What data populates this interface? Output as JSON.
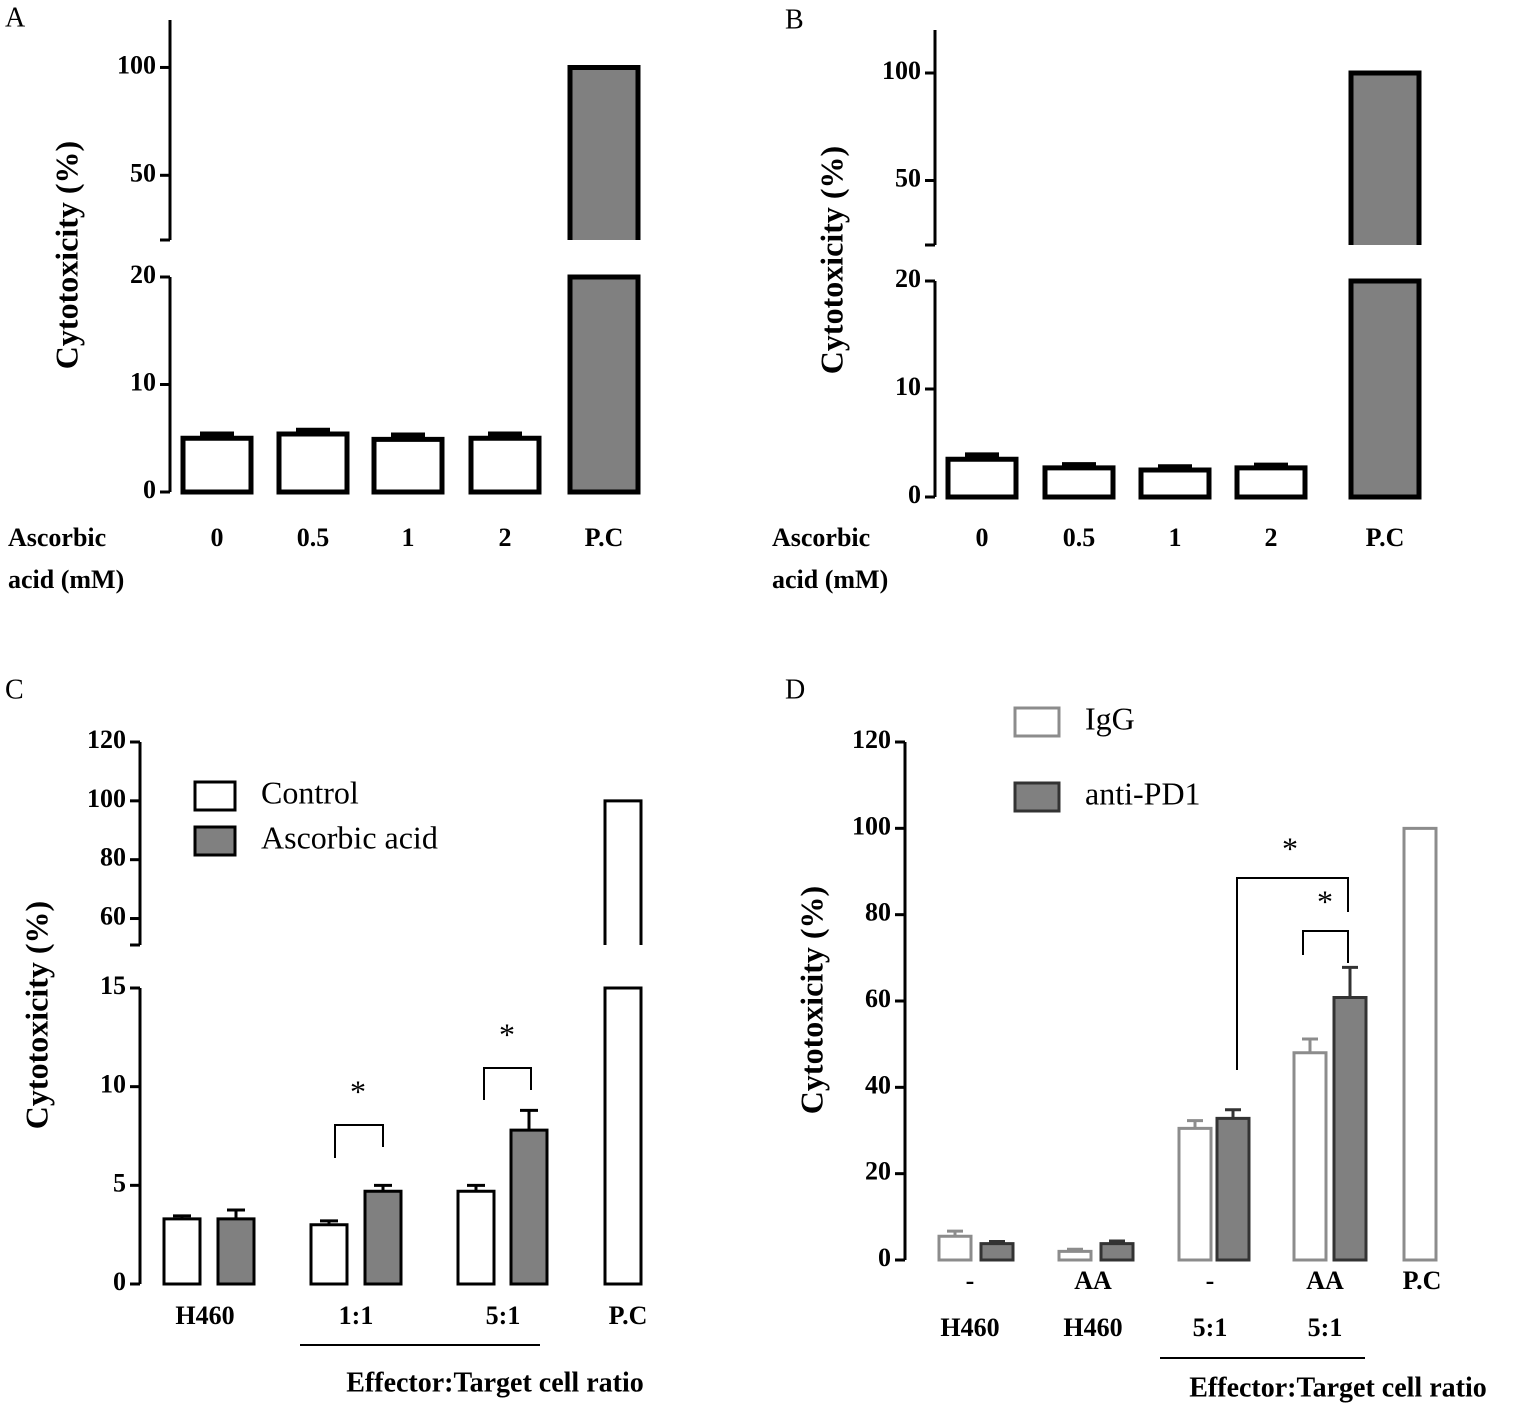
{
  "chart_data": [
    {
      "type": "bar",
      "panel": "A",
      "ylabel": "Cytotoxicity (%)",
      "xlabel": [
        "Ascorbic",
        "acid (mM)"
      ],
      "categories": [
        "0",
        "0.5",
        "1",
        "2",
        "P.C"
      ],
      "ysegments": [
        [
          0,
          20
        ],
        [
          20,
          122
        ]
      ],
      "yticks": [
        0,
        10,
        20,
        50,
        100
      ],
      "series": [
        {
          "colors": [
            "#ffffff",
            "#ffffff",
            "#ffffff",
            "#ffffff",
            "#808080"
          ],
          "edge": "#000000",
          "values": [
            5.0,
            5.4,
            4.9,
            5.0,
            100
          ],
          "errors": [
            0.4,
            0.35,
            0.4,
            0.4,
            null
          ]
        }
      ]
    },
    {
      "type": "bar",
      "panel": "B",
      "ylabel": "Cytotoxicity (%)",
      "xlabel": [
        "Ascorbic",
        "acid (mM)"
      ],
      "categories": [
        "0",
        "0.5",
        "1",
        "2",
        "P.C"
      ],
      "ysegments": [
        [
          0,
          20
        ],
        [
          20,
          120
        ]
      ],
      "yticks": [
        0,
        10,
        20,
        50,
        100
      ],
      "series": [
        {
          "colors": [
            "#ffffff",
            "#ffffff",
            "#ffffff",
            "#ffffff",
            "#808080"
          ],
          "edge": "#000000",
          "values": [
            3.5,
            2.7,
            2.5,
            2.7,
            100
          ],
          "errors": [
            0.4,
            0.3,
            0.3,
            0.25,
            null
          ]
        }
      ]
    },
    {
      "type": "bar",
      "panel": "C",
      "ylabel": "Cytotoxicity (%)",
      "categories": [
        "H460",
        "1:1",
        "5:1",
        "P.C"
      ],
      "group_label": "Effector:Target cell ratio",
      "ysegments": [
        [
          0,
          15
        ],
        [
          51,
          120
        ]
      ],
      "yticks": [
        0,
        5,
        10,
        15,
        60,
        80,
        100,
        120
      ],
      "series": [
        {
          "name": "Control",
          "color": "#ffffff",
          "edge": "#000000",
          "values": [
            3.3,
            3.0,
            4.7,
            100
          ],
          "errors": [
            0.15,
            0.2,
            0.3,
            null
          ]
        },
        {
          "name": "Ascorbic acid",
          "color": "#808080",
          "edge": "#000000",
          "values": [
            3.3,
            4.7,
            7.8,
            null
          ],
          "errors": [
            0.45,
            0.3,
            1.0,
            null
          ]
        }
      ],
      "annotations": [
        "*",
        "*"
      ]
    },
    {
      "type": "bar",
      "panel": "D",
      "ylabel": "Cytotoxicity (%)",
      "categories": [
        [
          "-",
          "H460"
        ],
        [
          "AA",
          "H460"
        ],
        [
          "-",
          "5:1"
        ],
        [
          "AA",
          "5:1"
        ],
        [
          "P.C"
        ]
      ],
      "group_label": "Effector:Target cell ratio",
      "ylim": [
        0,
        120
      ],
      "yticks": [
        0,
        20,
        40,
        60,
        80,
        100,
        120
      ],
      "series": [
        {
          "name": "IgG",
          "color": "#ffffff",
          "edge": "#8c8c8c",
          "values": [
            5.5,
            2.0,
            30.5,
            48,
            100
          ],
          "errors": [
            1.2,
            0.5,
            1.8,
            3.2,
            null
          ]
        },
        {
          "name": "anti-PD1",
          "color": "#808080",
          "edge": "#333333",
          "values": [
            3.8,
            3.8,
            32.8,
            60.8,
            null
          ],
          "errors": [
            0.5,
            0.6,
            2.0,
            7.0,
            null
          ]
        }
      ],
      "annotations": [
        "*",
        "*"
      ]
    }
  ]
}
